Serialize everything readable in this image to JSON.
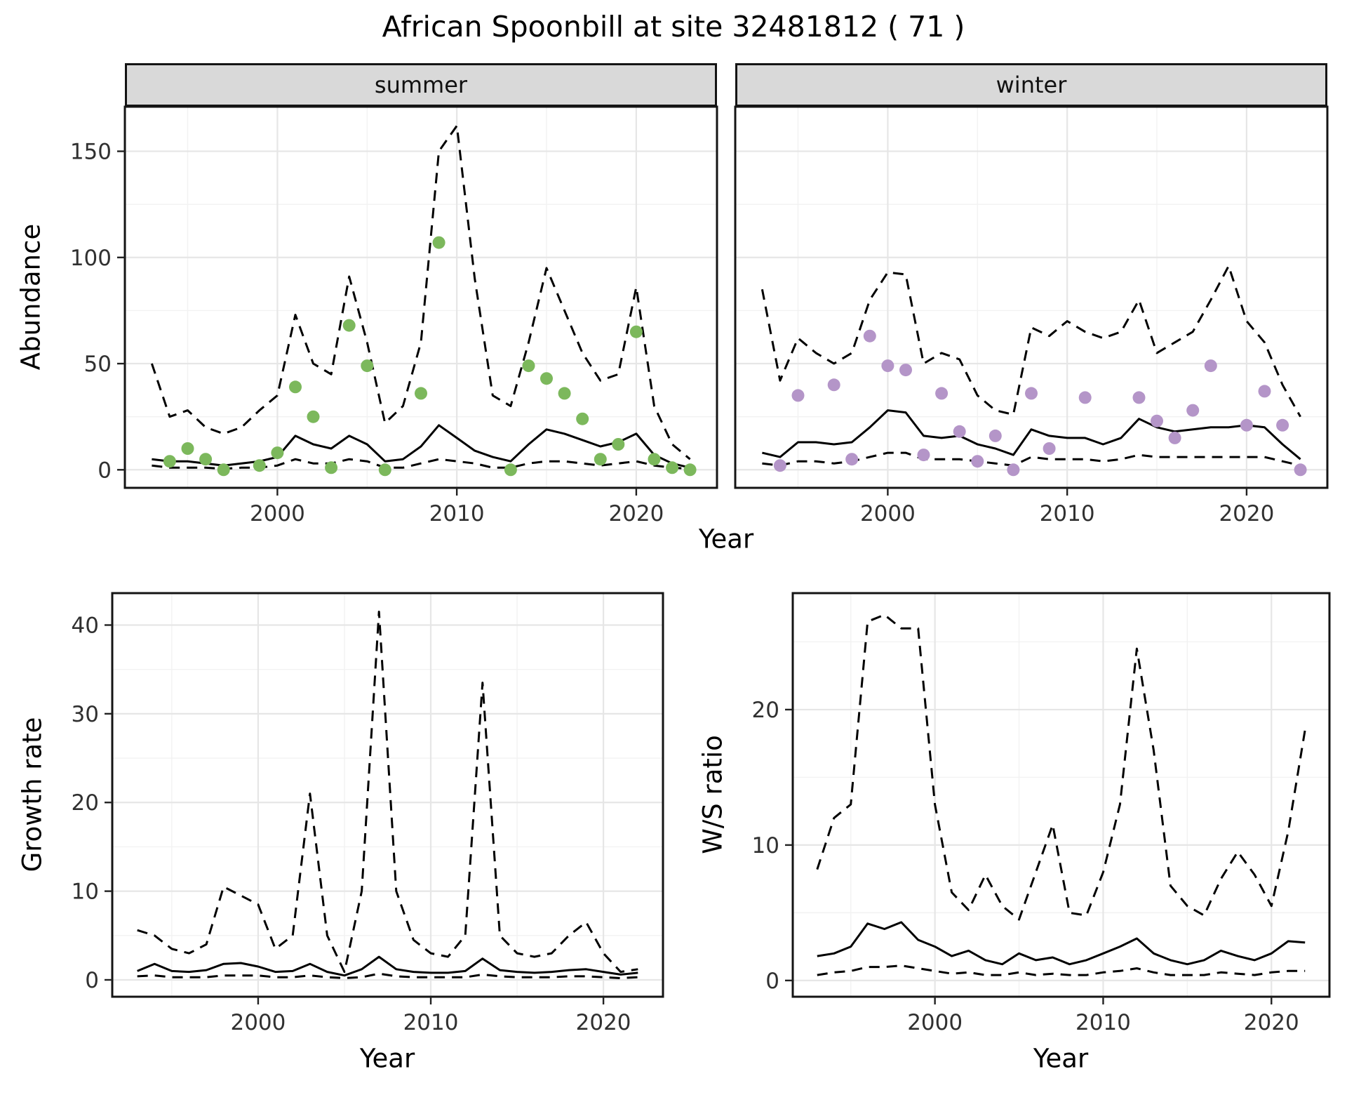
{
  "title": "African Spoonbill at site 32481812 ( 71 )",
  "facet_labels": {
    "summer": "summer",
    "winter": "winter"
  },
  "axis_labels": {
    "abundance": "Abundance",
    "year_top": "Year",
    "growth_rate": "Growth rate",
    "year_growth": "Year",
    "ws_ratio": "W/S ratio",
    "year_ws": "Year"
  },
  "colors": {
    "summer_point": "#7CB85C",
    "winter_point": "#B495C8",
    "line": "#000000",
    "grid_major": "#e6e6e6",
    "grid_minor": "#f2f2f2",
    "strip_bg": "#d9d9d9",
    "panel_border": "#141414",
    "tick_text": "#303030"
  },
  "chart_data": [
    {
      "id": "summer-abundance",
      "type": "line",
      "facet": "summer",
      "xlabel": "Year",
      "ylabel": "Abundance",
      "xlim": [
        1991.5,
        2024.5
      ],
      "ylim": [
        -8.5,
        171
      ],
      "xticks": [
        2000,
        2010,
        2020
      ],
      "xminor": [
        1995,
        2005,
        2015
      ],
      "yticks": [
        0,
        50,
        100,
        150
      ],
      "yminor": [
        25,
        75,
        125
      ],
      "grid": true,
      "x": [
        1993,
        1994,
        1995,
        1996,
        1997,
        1998,
        1999,
        2000,
        2001,
        2002,
        2003,
        2004,
        2005,
        2006,
        2007,
        2008,
        2009,
        2010,
        2011,
        2012,
        2013,
        2014,
        2015,
        2016,
        2017,
        2018,
        2019,
        2020,
        2021,
        2022,
        2023
      ],
      "series": [
        {
          "name": "upper_ci",
          "style": "dashed",
          "values": [
            50,
            25,
            28,
            20,
            17,
            20,
            28,
            35,
            73,
            50,
            45,
            91,
            60,
            22,
            30,
            60,
            150,
            162,
            90,
            35,
            30,
            60,
            95,
            75,
            55,
            42,
            45,
            86,
            30,
            12,
            5
          ]
        },
        {
          "name": "fit",
          "style": "solid",
          "values": [
            5,
            4,
            4,
            3,
            2,
            3,
            4,
            6,
            16,
            12,
            10,
            16,
            12,
            4,
            5,
            11,
            21,
            15,
            9,
            6,
            4,
            12,
            19,
            17,
            14,
            11,
            13,
            17,
            7,
            3,
            1
          ]
        },
        {
          "name": "lower_ci",
          "style": "dashed",
          "values": [
            2,
            1,
            1,
            1,
            0.5,
            1,
            1,
            2,
            5,
            3,
            3,
            5,
            4,
            1,
            1,
            3,
            5,
            4,
            3,
            1,
            1,
            3,
            4,
            4,
            3,
            2,
            3,
            4,
            2,
            1,
            0.5
          ]
        }
      ],
      "points": {
        "name": "observed_counts",
        "color_key": "summer_point",
        "x": [
          1994,
          1995,
          1996,
          1997,
          1999,
          2000,
          2001,
          2002,
          2003,
          2004,
          2005,
          2006,
          2008,
          2009,
          2013,
          2014,
          2015,
          2016,
          2017,
          2018,
          2019,
          2020,
          2021,
          2022,
          2023
        ],
        "y": [
          4,
          10,
          5,
          0,
          2,
          8,
          39,
          25,
          1,
          68,
          49,
          0,
          36,
          107,
          0,
          49,
          43,
          36,
          24,
          5,
          12,
          65,
          5,
          1,
          0
        ]
      }
    },
    {
      "id": "winter-abundance",
      "type": "line",
      "facet": "winter",
      "xlabel": "Year",
      "ylabel": "Abundance",
      "xlim": [
        1991.5,
        2024.5
      ],
      "ylim": [
        -8.5,
        171
      ],
      "xticks": [
        2000,
        2010,
        2020
      ],
      "xminor": [
        1995,
        2005,
        2015
      ],
      "yticks": [
        0,
        50,
        100,
        150
      ],
      "yminor": [
        25,
        75,
        125
      ],
      "grid": true,
      "x": [
        1993,
        1994,
        1995,
        1996,
        1997,
        1998,
        1999,
        2000,
        2001,
        2002,
        2003,
        2004,
        2005,
        2006,
        2007,
        2008,
        2009,
        2010,
        2011,
        2012,
        2013,
        2014,
        2015,
        2016,
        2017,
        2018,
        2019,
        2020,
        2021,
        2022,
        2023
      ],
      "series": [
        {
          "name": "upper_ci",
          "style": "dashed",
          "values": [
            85,
            42,
            62,
            55,
            50,
            55,
            80,
            93,
            92,
            50,
            55,
            52,
            35,
            28,
            26,
            67,
            63,
            70,
            65,
            62,
            65,
            80,
            55,
            60,
            65,
            80,
            96,
            70,
            60,
            40,
            25
          ]
        },
        {
          "name": "fit",
          "style": "solid",
          "values": [
            8,
            6,
            13,
            13,
            12,
            13,
            20,
            28,
            27,
            16,
            15,
            16,
            12,
            10,
            7,
            19,
            16,
            15,
            15,
            12,
            15,
            24,
            20,
            18,
            19,
            20,
            20,
            21,
            20,
            12,
            5
          ]
        },
        {
          "name": "lower_ci",
          "style": "dashed",
          "values": [
            3,
            2,
            4,
            4,
            3,
            4,
            6,
            8,
            8,
            5,
            5,
            5,
            4,
            3,
            2,
            6,
            5,
            5,
            5,
            4,
            5,
            7,
            6,
            6,
            6,
            6,
            6,
            6,
            6,
            4,
            2
          ]
        }
      ],
      "points": {
        "name": "observed_counts",
        "color_key": "winter_point",
        "x": [
          1994,
          1995,
          1997,
          1998,
          1999,
          2000,
          2001,
          2002,
          2003,
          2004,
          2005,
          2006,
          2007,
          2008,
          2009,
          2011,
          2014,
          2015,
          2016,
          2017,
          2018,
          2020,
          2021,
          2022,
          2023
        ],
        "y": [
          2,
          35,
          40,
          5,
          63,
          49,
          47,
          7,
          36,
          18,
          4,
          16,
          0,
          36,
          10,
          34,
          34,
          23,
          15,
          28,
          49,
          21,
          37,
          21,
          0
        ]
      }
    },
    {
      "id": "growth-rate",
      "type": "line",
      "facet": null,
      "xlabel": "Year",
      "ylabel": "Growth rate",
      "xlim": [
        1991.55,
        2023.45
      ],
      "ylim": [
        -1.9,
        43.6
      ],
      "xticks": [
        2000,
        2010,
        2020
      ],
      "xminor": [
        1995,
        2005,
        2015
      ],
      "yticks": [
        0,
        10,
        20,
        30,
        40
      ],
      "yminor": [
        5,
        15,
        25,
        35
      ],
      "grid": true,
      "x": [
        1993,
        1994,
        1995,
        1996,
        1997,
        1998,
        1999,
        2000,
        2001,
        2002,
        2003,
        2004,
        2005,
        2006,
        2007,
        2008,
        2009,
        2010,
        2011,
        2012,
        2013,
        2014,
        2015,
        2016,
        2017,
        2018,
        2019,
        2020,
        2021,
        2022
      ],
      "series": [
        {
          "name": "upper_ci",
          "style": "dashed",
          "values": [
            5.6,
            5.0,
            3.5,
            3.0,
            4.0,
            10.5,
            9.5,
            8.5,
            3.5,
            5.0,
            21.0,
            5.0,
            0.9,
            10.0,
            41.5,
            10.0,
            4.5,
            3.0,
            2.6,
            5.0,
            33.5,
            5.0,
            3.0,
            2.6,
            3.0,
            5.0,
            6.5,
            3.0,
            0.9,
            1.2
          ]
        },
        {
          "name": "fit",
          "style": "solid",
          "values": [
            1.0,
            1.8,
            1.0,
            0.9,
            1.1,
            1.8,
            1.9,
            1.5,
            0.9,
            1.0,
            1.8,
            0.9,
            0.5,
            1.2,
            2.6,
            1.2,
            0.9,
            0.8,
            0.8,
            1.0,
            2.4,
            1.1,
            0.9,
            0.8,
            0.9,
            1.1,
            1.2,
            0.9,
            0.6,
            0.8
          ]
        },
        {
          "name": "lower_ci",
          "style": "dashed",
          "values": [
            0.4,
            0.5,
            0.3,
            0.3,
            0.3,
            0.5,
            0.5,
            0.5,
            0.3,
            0.3,
            0.5,
            0.3,
            0.2,
            0.3,
            0.7,
            0.4,
            0.3,
            0.3,
            0.3,
            0.3,
            0.6,
            0.4,
            0.3,
            0.3,
            0.3,
            0.4,
            0.4,
            0.3,
            0.2,
            0.3
          ]
        }
      ],
      "points": null
    },
    {
      "id": "ws-ratio",
      "type": "line",
      "facet": null,
      "xlabel": "Year",
      "ylabel": "W/S ratio",
      "xlim": [
        1991.55,
        2023.45
      ],
      "ylim": [
        -1.2,
        28.6
      ],
      "xticks": [
        2000,
        2010,
        2020
      ],
      "xminor": [
        1995,
        2005,
        2015
      ],
      "yticks": [
        0,
        10,
        20
      ],
      "yminor": [
        5,
        15,
        25
      ],
      "grid": true,
      "x": [
        1993,
        1994,
        1995,
        1996,
        1997,
        1998,
        1999,
        2000,
        2001,
        2002,
        2003,
        2004,
        2005,
        2006,
        2007,
        2008,
        2009,
        2010,
        2011,
        2012,
        2013,
        2014,
        2015,
        2016,
        2017,
        2018,
        2019,
        2020,
        2021,
        2022
      ],
      "series": [
        {
          "name": "upper_ci",
          "style": "dashed",
          "values": [
            8.2,
            12,
            13,
            26.5,
            27,
            26,
            26,
            13,
            6.5,
            5.2,
            7.8,
            5.5,
            4.5,
            8,
            11.5,
            5,
            4.8,
            8,
            13,
            24.5,
            17,
            7,
            5.5,
            4.8,
            7.5,
            9.5,
            7.8,
            5.5,
            11,
            18.5
          ]
        },
        {
          "name": "fit",
          "style": "solid",
          "values": [
            1.8,
            2.0,
            2.5,
            4.2,
            3.8,
            4.3,
            3.0,
            2.5,
            1.8,
            2.2,
            1.5,
            1.2,
            2.0,
            1.5,
            1.7,
            1.2,
            1.5,
            2.0,
            2.5,
            3.1,
            2.0,
            1.5,
            1.2,
            1.5,
            2.2,
            1.8,
            1.5,
            2.0,
            2.9,
            2.8
          ]
        },
        {
          "name": "lower_ci",
          "style": "dashed",
          "values": [
            0.4,
            0.6,
            0.7,
            1.0,
            1.0,
            1.1,
            0.9,
            0.7,
            0.5,
            0.6,
            0.4,
            0.4,
            0.6,
            0.4,
            0.5,
            0.4,
            0.4,
            0.6,
            0.7,
            0.9,
            0.6,
            0.4,
            0.4,
            0.4,
            0.6,
            0.5,
            0.4,
            0.6,
            0.7,
            0.7
          ]
        }
      ],
      "points": null
    }
  ]
}
